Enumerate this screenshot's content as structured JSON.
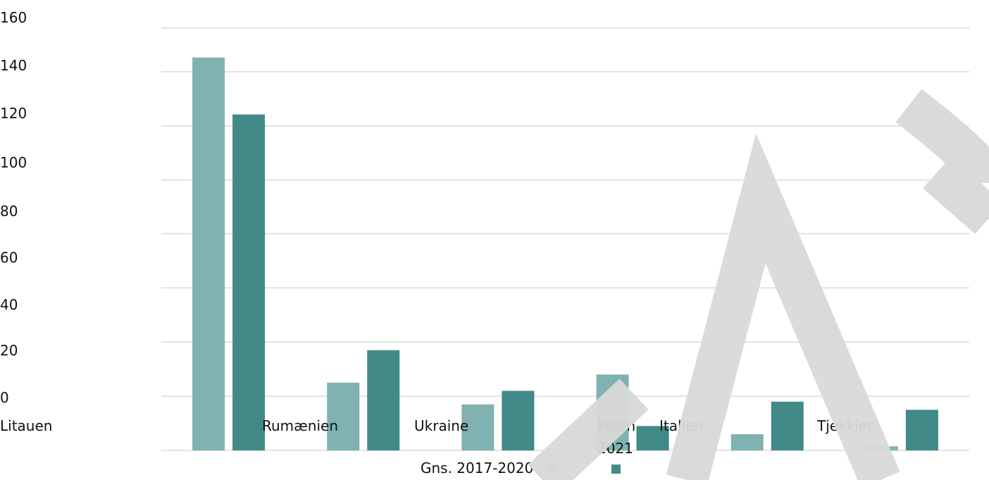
{
  "chart_data": {
    "type": "bar",
    "title": "",
    "categories": [
      "Litauen",
      "Rumænien",
      "Ukraine",
      "Polen",
      "Italien",
      "Tjekkiet"
    ],
    "series": [
      {
        "name": "Gns. 2017-2020",
        "values": [
          145,
          25,
          17,
          28,
          6,
          1.5
        ],
        "color": "#7fb2b0"
      },
      {
        "name": "2021",
        "values": [
          124,
          37,
          22,
          9,
          18,
          15
        ],
        "color": "#418a87"
      }
    ],
    "y_ticks": [
      "0",
      "20",
      "40",
      "60",
      "80",
      "100",
      "120",
      "140",
      "160"
    ],
    "ylim": [
      0,
      160
    ],
    "grid": true,
    "legend": "bottom"
  }
}
